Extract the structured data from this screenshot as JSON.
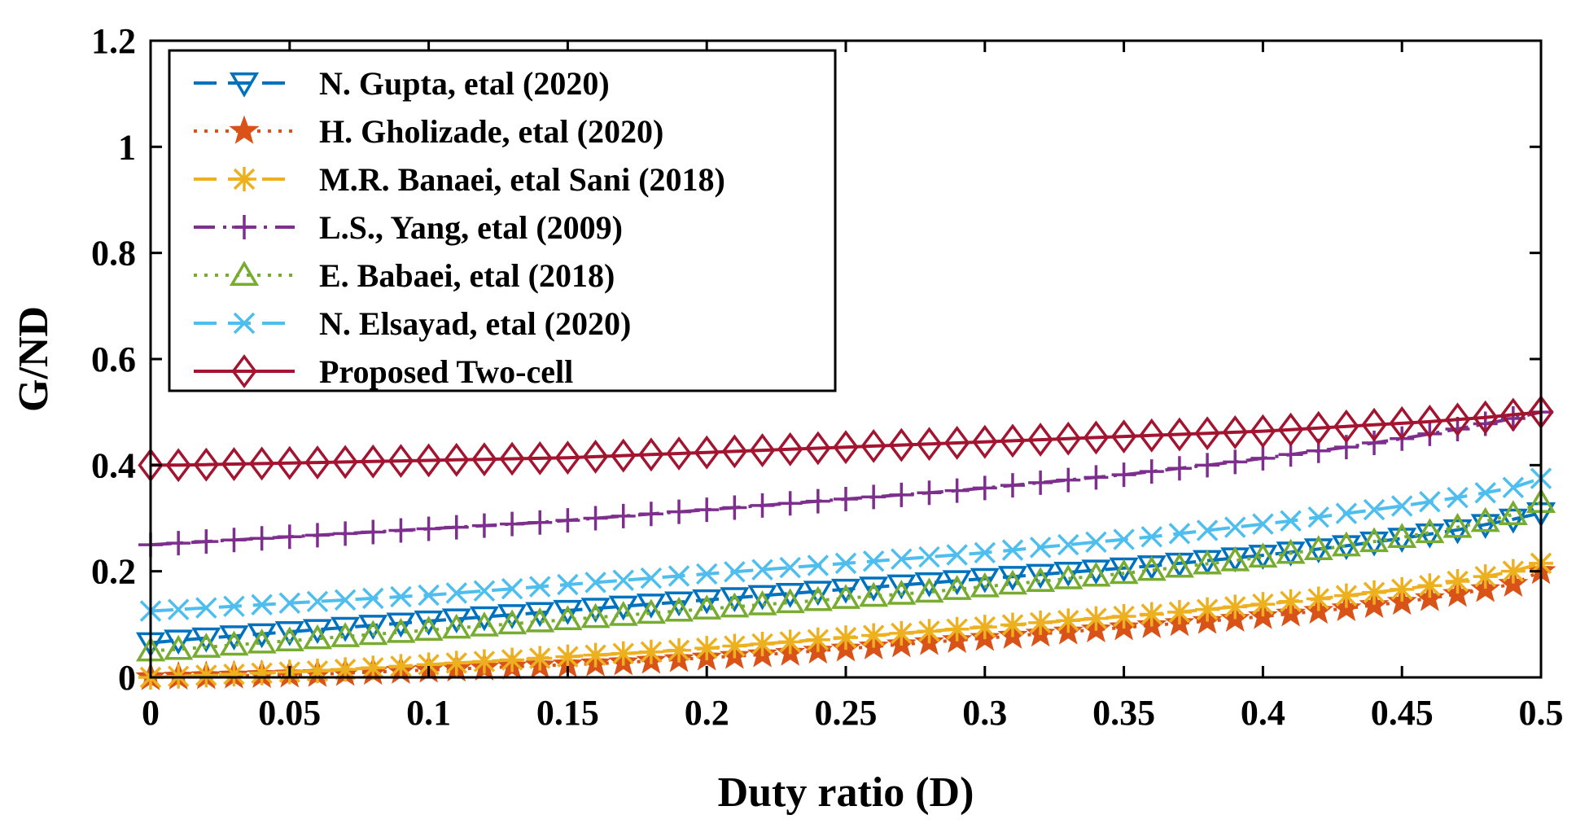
{
  "chart_data": {
    "type": "line",
    "title": "",
    "xlabel": "Duty ratio (D)",
    "ylabel": "G/ND",
    "xlim": [
      0,
      0.5
    ],
    "ylim": [
      0,
      1.2
    ],
    "xticks": [
      0,
      0.05,
      0.1,
      0.15,
      0.2,
      0.25,
      0.3,
      0.35,
      0.4,
      0.45,
      0.5
    ],
    "xtick_labels": [
      "0",
      "0.05",
      "0.1",
      "0.15",
      "0.2",
      "0.25",
      "0.3",
      "0.35",
      "0.4",
      "0.45",
      "0.5"
    ],
    "yticks": [
      0,
      0.2,
      0.4,
      0.6,
      0.8,
      1,
      1.2
    ],
    "ytick_labels": [
      "0",
      "0.2",
      "0.4",
      "0.6",
      "0.8",
      "1",
      "1.2"
    ],
    "grid": false,
    "legend_position": "top-left",
    "x": [
      0,
      0.01,
      0.02,
      0.03,
      0.04,
      0.05,
      0.06,
      0.07,
      0.08,
      0.09,
      0.1,
      0.11,
      0.12,
      0.13,
      0.14,
      0.15,
      0.16,
      0.17,
      0.18,
      0.19,
      0.2,
      0.21,
      0.22,
      0.23,
      0.24,
      0.25,
      0.26,
      0.27,
      0.28,
      0.29,
      0.3,
      0.31,
      0.32,
      0.33,
      0.34,
      0.35,
      0.36,
      0.37,
      0.38,
      0.39,
      0.4,
      0.41,
      0.42,
      0.43,
      0.44,
      0.45,
      0.46,
      0.47,
      0.48,
      0.49,
      0.5
    ],
    "series": [
      {
        "name": "N. Gupta, etal (2020)",
        "color": "#0072BD",
        "line_style": "dashed",
        "marker": "triangle-down",
        "values": [
          0.065,
          0.07,
          0.074,
          0.078,
          0.082,
          0.086,
          0.09,
          0.094,
          0.098,
          0.102,
          0.106,
          0.11,
          0.114,
          0.118,
          0.122,
          0.126,
          0.13,
          0.134,
          0.138,
          0.142,
          0.146,
          0.15,
          0.154,
          0.158,
          0.162,
          0.166,
          0.17,
          0.174,
          0.178,
          0.182,
          0.186,
          0.19,
          0.194,
          0.198,
          0.202,
          0.206,
          0.21,
          0.215,
          0.22,
          0.225,
          0.23,
          0.236,
          0.242,
          0.248,
          0.255,
          0.262,
          0.27,
          0.278,
          0.288,
          0.298,
          0.31
        ]
      },
      {
        "name": "H. Gholizade, etal (2020)",
        "color": "#D95319",
        "line_style": "dotted",
        "marker": "star",
        "values": [
          0.0,
          0.001,
          0.002,
          0.003,
          0.004,
          0.005,
          0.006,
          0.008,
          0.01,
          0.012,
          0.014,
          0.016,
          0.018,
          0.02,
          0.022,
          0.024,
          0.026,
          0.028,
          0.031,
          0.034,
          0.037,
          0.04,
          0.043,
          0.046,
          0.05,
          0.054,
          0.058,
          0.062,
          0.066,
          0.07,
          0.074,
          0.078,
          0.082,
          0.086,
          0.09,
          0.094,
          0.098,
          0.102,
          0.106,
          0.11,
          0.115,
          0.12,
          0.125,
          0.13,
          0.136,
          0.142,
          0.149,
          0.157,
          0.166,
          0.176,
          0.2
        ]
      },
      {
        "name": "M.R. Banaei, etal Sani (2018)",
        "color": "#EDB120",
        "line_style": "dashed",
        "marker": "asterisk",
        "values": [
          0.0,
          0.002,
          0.004,
          0.006,
          0.008,
          0.01,
          0.012,
          0.015,
          0.018,
          0.021,
          0.024,
          0.027,
          0.03,
          0.033,
          0.036,
          0.039,
          0.042,
          0.045,
          0.048,
          0.051,
          0.055,
          0.059,
          0.063,
          0.067,
          0.071,
          0.075,
          0.079,
          0.083,
          0.087,
          0.091,
          0.095,
          0.099,
          0.103,
          0.107,
          0.111,
          0.115,
          0.119,
          0.123,
          0.128,
          0.133,
          0.138,
          0.143,
          0.148,
          0.154,
          0.16,
          0.166,
          0.173,
          0.181,
          0.19,
          0.2,
          0.215
        ]
      },
      {
        "name": "L.S., Yang, etal (2009)",
        "color": "#7E2F8E",
        "line_style": "dash-dot",
        "marker": "plus",
        "values": [
          0.25,
          0.253,
          0.256,
          0.259,
          0.262,
          0.265,
          0.268,
          0.271,
          0.274,
          0.277,
          0.28,
          0.283,
          0.286,
          0.289,
          0.292,
          0.296,
          0.3,
          0.304,
          0.308,
          0.312,
          0.316,
          0.32,
          0.324,
          0.328,
          0.332,
          0.336,
          0.34,
          0.344,
          0.348,
          0.352,
          0.357,
          0.362,
          0.367,
          0.372,
          0.377,
          0.382,
          0.388,
          0.394,
          0.4,
          0.406,
          0.413,
          0.42,
          0.427,
          0.434,
          0.442,
          0.45,
          0.459,
          0.468,
          0.478,
          0.488,
          0.5
        ]
      },
      {
        "name": "E. Babaei, etal (2018)",
        "color": "#77AC30",
        "line_style": "dotted",
        "marker": "triangle-up",
        "values": [
          0.05,
          0.053,
          0.057,
          0.061,
          0.065,
          0.069,
          0.073,
          0.077,
          0.081,
          0.085,
          0.089,
          0.093,
          0.097,
          0.101,
          0.105,
          0.109,
          0.113,
          0.117,
          0.121,
          0.125,
          0.129,
          0.133,
          0.137,
          0.141,
          0.145,
          0.149,
          0.153,
          0.157,
          0.161,
          0.166,
          0.171,
          0.176,
          0.181,
          0.186,
          0.191,
          0.196,
          0.202,
          0.208,
          0.214,
          0.22,
          0.227,
          0.234,
          0.241,
          0.248,
          0.256,
          0.264,
          0.273,
          0.283,
          0.294,
          0.307,
          0.33
        ]
      },
      {
        "name": "N. Elsayad, etal (2020)",
        "color": "#4DBEEE",
        "line_style": "dashed",
        "marker": "x",
        "values": [
          0.125,
          0.128,
          0.131,
          0.134,
          0.137,
          0.14,
          0.143,
          0.146,
          0.149,
          0.152,
          0.155,
          0.159,
          0.163,
          0.167,
          0.171,
          0.175,
          0.179,
          0.183,
          0.187,
          0.191,
          0.195,
          0.199,
          0.203,
          0.207,
          0.211,
          0.215,
          0.219,
          0.223,
          0.227,
          0.231,
          0.235,
          0.24,
          0.245,
          0.25,
          0.255,
          0.26,
          0.265,
          0.271,
          0.277,
          0.283,
          0.289,
          0.295,
          0.302,
          0.309,
          0.316,
          0.323,
          0.331,
          0.339,
          0.348,
          0.358,
          0.375
        ]
      },
      {
        "name": "Proposed Two-cell",
        "color": "#A2142F",
        "line_style": "solid",
        "marker": "diamond",
        "values": [
          0.4,
          0.4,
          0.401,
          0.402,
          0.403,
          0.404,
          0.405,
          0.406,
          0.407,
          0.408,
          0.409,
          0.41,
          0.411,
          0.412,
          0.413,
          0.414,
          0.416,
          0.418,
          0.42,
          0.422,
          0.424,
          0.426,
          0.428,
          0.43,
          0.432,
          0.434,
          0.436,
          0.438,
          0.44,
          0.442,
          0.444,
          0.446,
          0.448,
          0.45,
          0.452,
          0.454,
          0.456,
          0.458,
          0.46,
          0.462,
          0.464,
          0.467,
          0.47,
          0.473,
          0.476,
          0.479,
          0.482,
          0.486,
          0.49,
          0.495,
          0.5
        ]
      }
    ]
  }
}
